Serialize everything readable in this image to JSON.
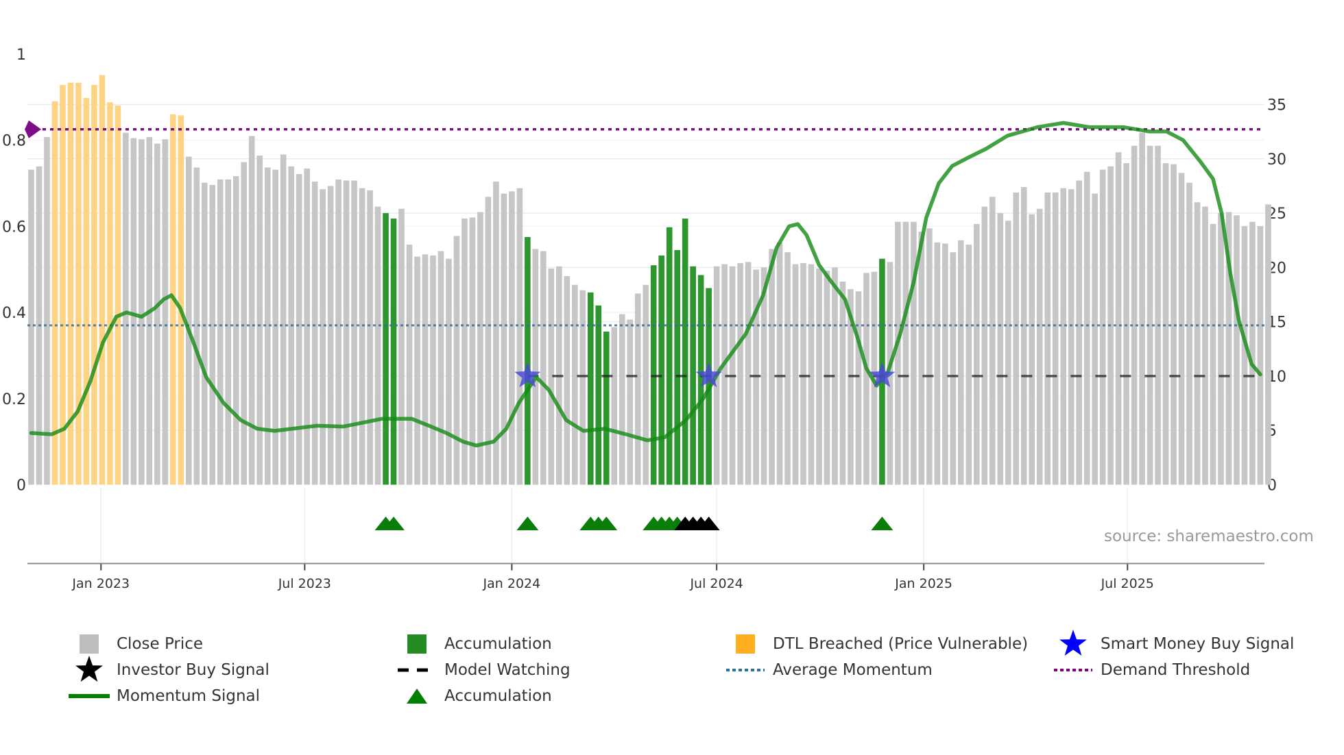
{
  "chart_data": {
    "type": "bar",
    "title": "",
    "x_start": "2022-10-31",
    "x_interval_days": 7,
    "x_ticks": [
      {
        "label": "Jan 2023",
        "date": "2023-01-01"
      },
      {
        "label": "Jul 2023",
        "date": "2023-07-01"
      },
      {
        "label": "Jan 2024",
        "date": "2024-01-01"
      },
      {
        "label": "Jul 2024",
        "date": "2024-07-01"
      },
      {
        "label": "Jan 2025",
        "date": "2025-01-01"
      },
      {
        "label": "Jul 2025",
        "date": "2025-07-01"
      }
    ],
    "y_left": {
      "range": [
        0,
        1
      ],
      "ticks": [
        "0",
        "0.2",
        "0.4",
        "0.6",
        "0.8",
        "1"
      ]
    },
    "y_right": {
      "range": [
        0,
        35
      ],
      "ticks": [
        "0",
        "5",
        "10",
        "15",
        "20",
        "25",
        "30",
        "35"
      ]
    },
    "close_price": [
      29.0,
      29.3,
      32.0,
      35.3,
      36.8,
      37.0,
      37.0,
      35.6,
      36.8,
      37.7,
      35.2,
      34.9,
      32.4,
      31.9,
      31.8,
      32.0,
      31.4,
      31.8,
      34.1,
      34.0,
      30.2,
      29.2,
      27.8,
      27.6,
      28.1,
      28.1,
      28.4,
      29.7,
      32.1,
      30.3,
      29.2,
      29.0,
      30.4,
      29.3,
      28.6,
      29.1,
      27.9,
      27.2,
      27.5,
      28.1,
      28.0,
      28.0,
      27.3,
      27.1,
      25.6,
      25.0,
      24.5,
      25.4,
      22.1,
      21.0,
      21.2,
      21.1,
      21.5,
      20.8,
      22.9,
      24.5,
      24.6,
      25.1,
      26.5,
      27.9,
      26.8,
      27.0,
      27.3,
      22.8,
      21.7,
      21.5,
      19.9,
      20.1,
      19.2,
      18.4,
      17.9,
      17.7,
      16.5,
      14.1,
      14.5,
      15.7,
      15.2,
      17.6,
      18.4,
      20.2,
      21.1,
      23.7,
      21.6,
      24.5,
      20.1,
      19.3,
      18.1,
      20.1,
      20.3,
      20.1,
      20.4,
      20.5,
      19.8,
      20.0,
      21.7,
      22.3,
      21.4,
      20.3,
      20.4,
      20.3,
      19.9,
      19.7,
      20.0,
      18.7,
      18.0,
      17.8,
      19.5,
      19.6,
      20.8,
      20.5,
      24.2,
      24.2,
      24.2,
      23.3,
      23.6,
      22.3,
      22.2,
      21.4,
      22.5,
      22.1,
      24.0,
      25.6,
      26.5,
      25.0,
      24.3,
      26.9,
      27.4,
      24.9,
      25.4,
      26.9,
      26.9,
      27.3,
      27.2,
      28.0,
      28.8,
      26.8,
      29.0,
      29.3,
      30.6,
      29.6,
      31.2,
      32.4,
      31.2,
      31.2,
      29.6,
      29.5,
      28.7,
      27.8,
      26.0,
      25.6,
      24.0,
      25.0,
      25.1,
      24.8,
      23.8,
      24.2,
      23.8,
      25.8
    ],
    "accumulation_bars": [
      45,
      46,
      63,
      71,
      72,
      73,
      79,
      80,
      81,
      82,
      83,
      84,
      85,
      86,
      108
    ],
    "dtl_breached_bars": [
      3,
      4,
      5,
      6,
      7,
      8,
      9,
      10,
      11,
      18,
      19
    ],
    "smart_money_buy_signals": [
      63,
      86,
      108
    ],
    "smart_money_level": 10,
    "model_watching": {
      "from_week": 63,
      "level": 10
    },
    "accumulation_markers": [
      45,
      46,
      63,
      71,
      72,
      73,
      79,
      80,
      81,
      82,
      108
    ],
    "investor_buy_signals": [
      83,
      84,
      85,
      86
    ],
    "average_momentum": 0.37,
    "demand_threshold": 0.825,
    "momentum_signal": [
      [
        0,
        0.12
      ],
      [
        2.6,
        0.117
      ],
      [
        4.2,
        0.13
      ],
      [
        5.9,
        0.17
      ],
      [
        7.5,
        0.24
      ],
      [
        9.1,
        0.33
      ],
      [
        10.8,
        0.39
      ],
      [
        12.1,
        0.4
      ],
      [
        14.0,
        0.39
      ],
      [
        15.7,
        0.41
      ],
      [
        16.8,
        0.43
      ],
      [
        17.8,
        0.44
      ],
      [
        18.9,
        0.41
      ],
      [
        20.6,
        0.33
      ],
      [
        22.2,
        0.25
      ],
      [
        24.4,
        0.19
      ],
      [
        26.6,
        0.15
      ],
      [
        28.7,
        0.13
      ],
      [
        30.9,
        0.125
      ],
      [
        33.1,
        0.13
      ],
      [
        36.3,
        0.137
      ],
      [
        39.6,
        0.135
      ],
      [
        41.8,
        0.143
      ],
      [
        44.5,
        0.153
      ],
      [
        48.3,
        0.153
      ],
      [
        50.5,
        0.137
      ],
      [
        52.7,
        0.12
      ],
      [
        54.8,
        0.1
      ],
      [
        56.5,
        0.091
      ],
      [
        58.7,
        0.1
      ],
      [
        60.3,
        0.13
      ],
      [
        61.9,
        0.19
      ],
      [
        64.1,
        0.25
      ],
      [
        65.7,
        0.22
      ],
      [
        67.9,
        0.15
      ],
      [
        70.1,
        0.125
      ],
      [
        72.8,
        0.13
      ],
      [
        75.5,
        0.117
      ],
      [
        78.2,
        0.103
      ],
      [
        80.4,
        0.11
      ],
      [
        83.1,
        0.15
      ],
      [
        85.3,
        0.2
      ],
      [
        87.5,
        0.27
      ],
      [
        90.7,
        0.35
      ],
      [
        92.9,
        0.44
      ],
      [
        94.6,
        0.55
      ],
      [
        96.2,
        0.6
      ],
      [
        97.3,
        0.605
      ],
      [
        98.4,
        0.58
      ],
      [
        100.0,
        0.51
      ],
      [
        101.6,
        0.47
      ],
      [
        103.3,
        0.43
      ],
      [
        104.9,
        0.34
      ],
      [
        106.0,
        0.27
      ],
      [
        107.3,
        0.23
      ],
      [
        108.7,
        0.26
      ],
      [
        110.3,
        0.35
      ],
      [
        112.0,
        0.47
      ],
      [
        113.6,
        0.62
      ],
      [
        115.2,
        0.7
      ],
      [
        116.9,
        0.74
      ],
      [
        119.0,
        0.76
      ],
      [
        121.2,
        0.78
      ],
      [
        123.9,
        0.81
      ],
      [
        127.7,
        0.83
      ],
      [
        131.0,
        0.84
      ],
      [
        134.3,
        0.83
      ],
      [
        138.6,
        0.83
      ],
      [
        141.9,
        0.82
      ],
      [
        144.1,
        0.82
      ],
      [
        146.2,
        0.8
      ],
      [
        148.4,
        0.75
      ],
      [
        150.0,
        0.71
      ],
      [
        151.1,
        0.63
      ],
      [
        152.2,
        0.49
      ],
      [
        153.3,
        0.38
      ],
      [
        154.9,
        0.28
      ],
      [
        156.0,
        0.256
      ]
    ]
  },
  "colors": {
    "close": "#c6c6c6",
    "accumulation": "#2e962e",
    "dtl": "#ffd384",
    "momentum": "#138a13",
    "smart_money": "#4a4ad6",
    "investor": "#000000",
    "average_momentum": "#3a6f99",
    "demand_threshold": "#7d0f86",
    "triangle": "#0a7d0a"
  },
  "source": "source: sharemaestro.com",
  "legend": [
    {
      "label": "Close Price",
      "icon": "gray-square"
    },
    {
      "label": "Accumulation",
      "icon": "green-square"
    },
    {
      "label": "DTL Breached (Price Vulnerable)",
      "icon": "orange-square"
    },
    {
      "label": "Smart Money Buy Signal",
      "icon": "blue-star"
    },
    {
      "label": "Investor Buy Signal",
      "icon": "black-star"
    },
    {
      "label": "Model Watching",
      "icon": "black-dashed-line"
    },
    {
      "label": "Average Momentum",
      "icon": "blue-dotted-line"
    },
    {
      "label": "Demand Threshold",
      "icon": "purple-dotted-line"
    },
    {
      "label": "Momentum Signal",
      "icon": "green-line"
    },
    {
      "label": "Accumulation",
      "icon": "green-triangle"
    }
  ]
}
